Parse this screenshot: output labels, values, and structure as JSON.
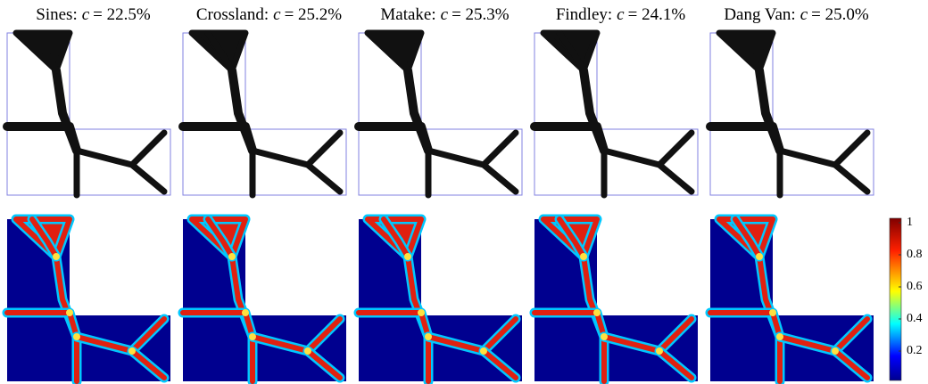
{
  "panels": [
    {
      "name": "Sines:",
      "symbol": "c",
      "value": "= 22.5%"
    },
    {
      "name": "Crossland:",
      "symbol": "c",
      "value": "= 25.2%"
    },
    {
      "name": "Matake:",
      "symbol": "c",
      "value": "= 25.3%"
    },
    {
      "name": "Findley:",
      "symbol": "c",
      "value": "= 24.1%"
    },
    {
      "name": "Dang Van:",
      "symbol": "c",
      "value": "= 25.0%"
    }
  ],
  "colorbar": {
    "lim": [
      0,
      1
    ],
    "ticks": [
      1,
      0.8,
      0.6,
      0.4,
      0.2
    ]
  }
}
